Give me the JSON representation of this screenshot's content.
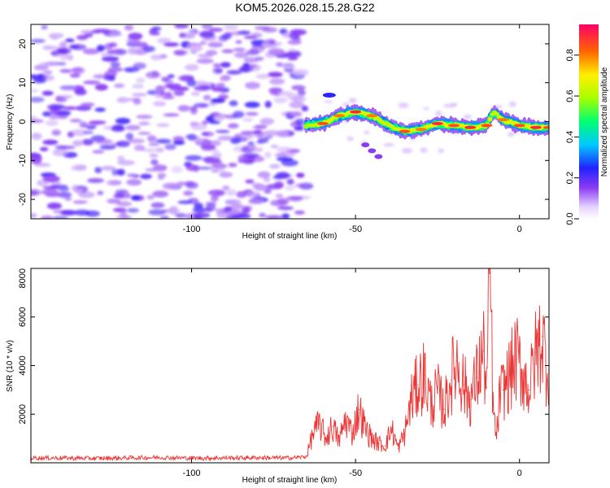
{
  "figure": {
    "title": "KOM5.2026.028.15.28.G22"
  },
  "chart_data": [
    {
      "type": "heatmap",
      "xlabel": "Height of straight line (km)",
      "ylabel": "Frequency (Hz)",
      "xlim": [
        -149,
        9
      ],
      "ylim": [
        -25,
        25
      ],
      "xticks": [
        -100,
        -50,
        0
      ],
      "yticks": [
        -20,
        -10,
        0,
        10,
        20
      ],
      "colorbar": {
        "label": "Normalized spectral amplitude",
        "range": [
          0,
          0.95
        ],
        "ticks": [
          0,
          0.2,
          0.4,
          0.6,
          0.8
        ],
        "tick_labels": [
          "0.0",
          "0.2",
          "0.4",
          "0.6",
          "0.8"
        ]
      },
      "noise_region": {
        "x": [
          -149,
          -65
        ],
        "amplitude_range": [
          0.05,
          0.2
        ]
      },
      "ridge": {
        "x": [
          -65,
          -60,
          -55,
          -50,
          -45,
          -40,
          -35,
          -30,
          -25,
          -20,
          -15,
          -10,
          -8,
          -5,
          0,
          5,
          9
        ],
        "frequency": [
          -1,
          -0.5,
          1.5,
          2.5,
          1.5,
          -1,
          -2.5,
          -2,
          -0.5,
          -1,
          -1.5,
          -1,
          2.5,
          0.5,
          -1,
          -1.5,
          -1.5
        ],
        "peak_amplitude": [
          0.6,
          0.85,
          0.8,
          0.9,
          0.8,
          0.7,
          0.85,
          0.8,
          0.9,
          0.85,
          0.9,
          0.85,
          0.7,
          0.8,
          0.85,
          0.9,
          0.85
        ]
      }
    },
    {
      "type": "line",
      "xlabel": "Height of straight line (km)",
      "ylabel": "SNR (10 * v/v)",
      "xlim": [
        -149,
        9
      ],
      "ylim": [
        0,
        8000
      ],
      "xticks": [
        -100,
        -50,
        0
      ],
      "yticks": [
        2000,
        4000,
        6000,
        8000
      ],
      "line_color": "#ee3333",
      "series": [
        {
          "x": [
            -149,
            -140,
            -130,
            -120,
            -110,
            -100,
            -90,
            -80,
            -70,
            -65,
            -63,
            -61,
            -59,
            -57,
            -55,
            -53,
            -51,
            -49,
            -47,
            -45,
            -43,
            -41,
            -39,
            -37,
            -35,
            -33,
            -31,
            -29,
            -27,
            -25,
            -23,
            -21,
            -19,
            -17,
            -15,
            -13,
            -11,
            -10,
            -9,
            -8,
            -7,
            -6,
            -5,
            -3,
            -1,
            1,
            3,
            5,
            7,
            8,
            9
          ],
          "y": [
            200,
            200,
            180,
            200,
            220,
            190,
            200,
            210,
            200,
            250,
            1200,
            1600,
            1000,
            1500,
            900,
            1800,
            1200,
            2200,
            1400,
            1000,
            800,
            700,
            1400,
            600,
            1200,
            2600,
            3200,
            3600,
            2400,
            2900,
            2200,
            3400,
            4200,
            3200,
            2600,
            3500,
            4600,
            3100,
            8000,
            2000,
            1000,
            2800,
            3000,
            3600,
            4300,
            3700,
            3000,
            4500,
            5200,
            4200,
            4000
          ]
        }
      ]
    }
  ]
}
